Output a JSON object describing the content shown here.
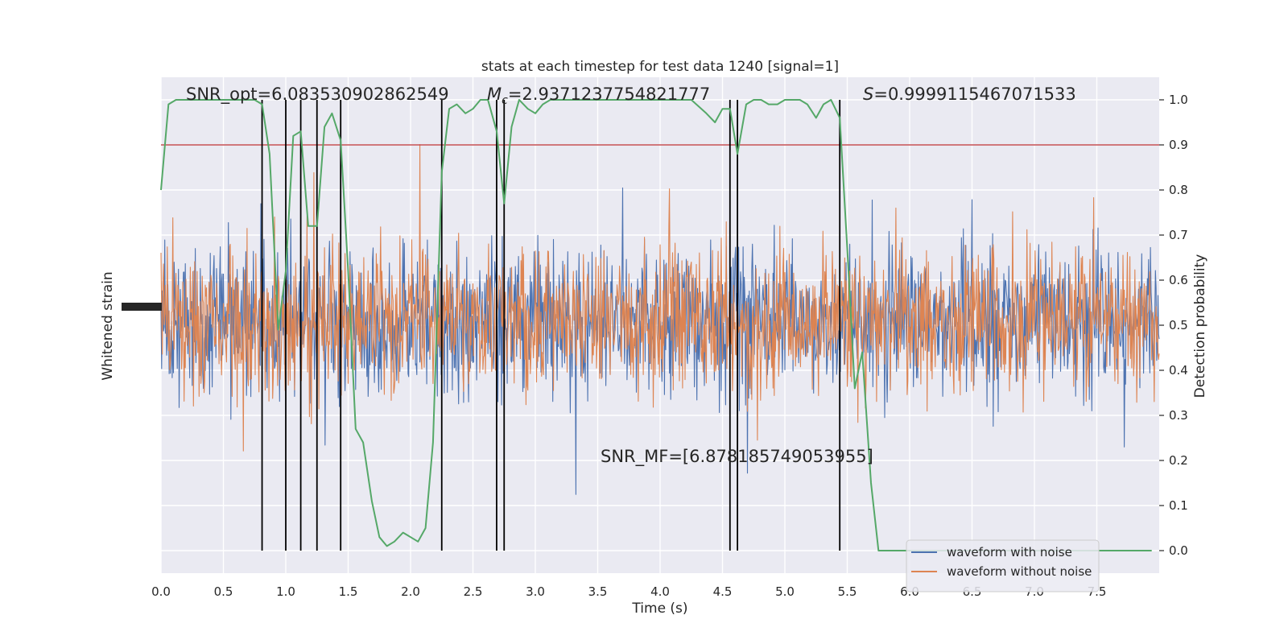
{
  "chart_data": {
    "type": "line",
    "title": "stats at each timestep for test data 1240 [signal=1]",
    "xlabel": "Time (s)",
    "ylabel_left": "Whitened strain",
    "ylabel_right": "Detection probability",
    "xlim": [
      0.0,
      8.0
    ],
    "ylim_right": [
      -0.05,
      1.05
    ],
    "x_ticks": [
      "0.0",
      "0.5",
      "1.0",
      "1.5",
      "2.0",
      "2.5",
      "3.0",
      "3.5",
      "4.0",
      "4.5",
      "5.0",
      "5.5",
      "6.0",
      "6.5",
      "7.0",
      "7.5"
    ],
    "y_ticks_right": [
      "0.0",
      "0.1",
      "0.2",
      "0.3",
      "0.4",
      "0.5",
      "0.6",
      "0.7",
      "0.8",
      "0.9",
      "1.0"
    ],
    "grid": true,
    "legend_placement": "lower-right",
    "annotations": {
      "snr_opt": "SNR_opt=6.083530902862549",
      "mc_label": "M",
      "mc_sub": "c",
      "mc_value": "=2.9371237754821777",
      "s_label": "S",
      "s_value": "=0.9999115467071533",
      "snr_mf": "SNR_MF=[6.878185749053955]"
    },
    "threshold": 0.9,
    "vertical_markers": [
      0.81,
      1.0,
      1.12,
      1.25,
      1.44,
      2.25,
      2.69,
      2.75,
      4.56,
      4.62,
      5.44
    ],
    "series": [
      {
        "name": "waveform with noise",
        "color": "#4c72b0",
        "kind": "strain-noise"
      },
      {
        "name": "waveform without noise",
        "color": "#dd8452",
        "kind": "strain-noise"
      },
      {
        "name": "",
        "color": "#55a868",
        "kind": "probability",
        "x": [
          0.0,
          0.06,
          0.12,
          0.18,
          0.25,
          0.31,
          0.37,
          0.44,
          0.5,
          0.56,
          0.62,
          0.69,
          0.75,
          0.81,
          0.87,
          0.94,
          1.0,
          1.06,
          1.12,
          1.18,
          1.25,
          1.31,
          1.37,
          1.44,
          1.5,
          1.56,
          1.62,
          1.69,
          1.75,
          1.81,
          1.87,
          1.94,
          2.0,
          2.06,
          2.12,
          2.18,
          2.25,
          2.31,
          2.37,
          2.44,
          2.5,
          2.56,
          2.62,
          2.69,
          2.75,
          2.81,
          2.87,
          2.94,
          3.0,
          3.06,
          3.12,
          3.25,
          3.5,
          3.75,
          4.0,
          4.25,
          4.37,
          4.44,
          4.5,
          4.56,
          4.62,
          4.69,
          4.75,
          4.81,
          4.87,
          4.94,
          5.0,
          5.06,
          5.12,
          5.18,
          5.25,
          5.31,
          5.37,
          5.44,
          5.5,
          5.56,
          5.62,
          5.69,
          5.75,
          5.81,
          5.87,
          5.94,
          6.0,
          6.5,
          7.0,
          7.5,
          7.56,
          7.62,
          7.69,
          7.75,
          7.81,
          7.87,
          7.94
        ],
        "values": [
          0.8,
          0.99,
          1.0,
          1.0,
          1.0,
          1.0,
          1.0,
          1.0,
          1.0,
          1.0,
          1.0,
          1.0,
          1.0,
          0.99,
          0.88,
          0.49,
          0.62,
          0.92,
          0.93,
          0.72,
          0.72,
          0.94,
          0.97,
          0.91,
          0.62,
          0.27,
          0.24,
          0.11,
          0.03,
          0.01,
          0.02,
          0.04,
          0.03,
          0.02,
          0.05,
          0.24,
          0.84,
          0.98,
          0.99,
          0.97,
          0.98,
          1.0,
          1.0,
          0.93,
          0.77,
          0.94,
          1.0,
          0.98,
          0.97,
          0.99,
          1.0,
          1.0,
          1.0,
          1.0,
          1.0,
          1.0,
          0.97,
          0.95,
          0.98,
          0.98,
          0.88,
          0.99,
          1.0,
          1.0,
          0.99,
          0.99,
          1.0,
          1.0,
          1.0,
          0.99,
          0.96,
          0.99,
          1.0,
          0.96,
          0.67,
          0.36,
          0.44,
          0.15,
          0.0,
          0.0,
          0.0,
          0.0,
          0.0,
          0.0,
          0.0,
          0.0,
          0.0,
          0.0,
          0.0,
          0.0,
          0.0,
          0.0,
          0.0
        ]
      }
    ],
    "colors": {
      "plot_bg": "#eaeaf2",
      "grid": "#ffffff",
      "threshold": "#c44e52",
      "marker": "#000000"
    }
  }
}
